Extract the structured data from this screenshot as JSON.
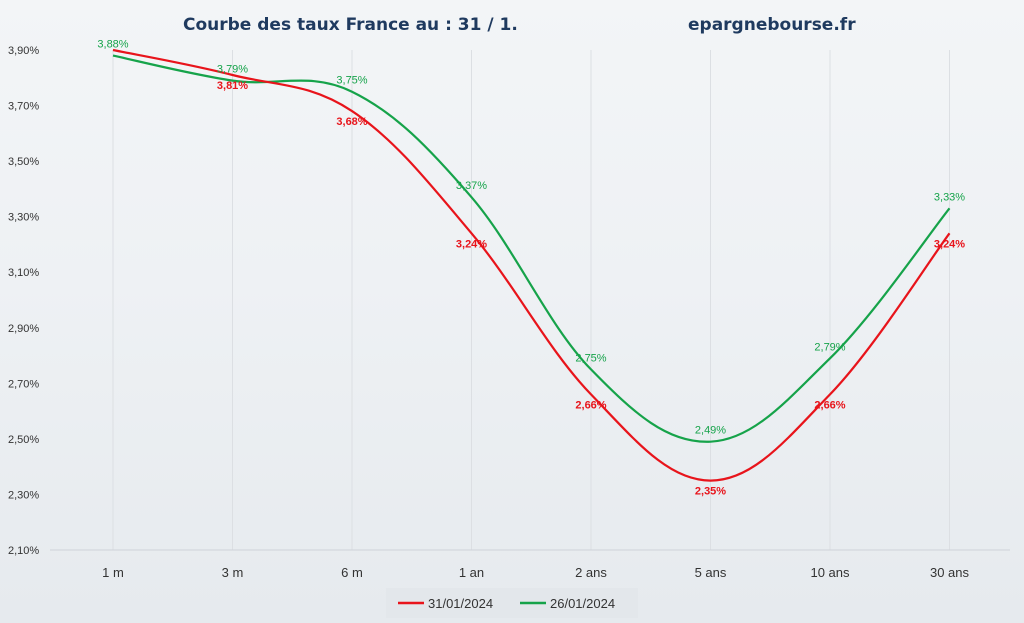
{
  "chart_data": {
    "type": "line",
    "title": "Courbe des taux France au : 31 / 1.",
    "source": "epargnebourse.fr",
    "categories": [
      "1 m",
      "3 m",
      "6 m",
      "1 an",
      "2 ans",
      "5 ans",
      "10 ans",
      "30 ans"
    ],
    "ylim": [
      2.1,
      3.95
    ],
    "yticks": [
      2.1,
      2.3,
      2.5,
      2.7,
      2.9,
      3.1,
      3.3,
      3.5,
      3.7,
      3.9
    ],
    "ytick_labels": [
      "2,10%",
      "2,30%",
      "2,50%",
      "2,70%",
      "2,90%",
      "3,10%",
      "3,30%",
      "3,50%",
      "3,70%",
      "3,90%"
    ],
    "xlabel": "",
    "ylabel": "",
    "grid": "vertical",
    "legend_position": "bottom",
    "series": [
      {
        "name": "31/01/2024",
        "color": "#e8141b",
        "values": [
          3.9,
          3.81,
          3.68,
          3.24,
          2.66,
          2.35,
          2.66,
          3.24
        ],
        "labels": [
          "",
          "3,81%",
          "3,68%",
          "3,24%",
          "2,66%",
          "2,35%",
          "2,66%",
          "3,24%"
        ]
      },
      {
        "name": "26/01/2024",
        "color": "#16a34a",
        "values": [
          3.88,
          3.79,
          3.75,
          3.37,
          2.75,
          2.49,
          2.79,
          3.33
        ],
        "labels": [
          "3,88%",
          "3,79%",
          "3,75%",
          "3,37%",
          "2,75%",
          "2,49%",
          "2,79%",
          "3,33%"
        ]
      }
    ]
  }
}
